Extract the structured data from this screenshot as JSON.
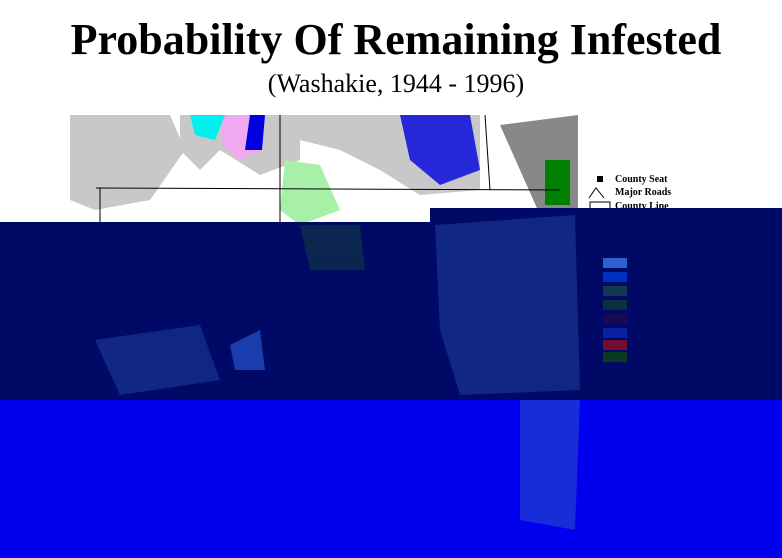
{
  "title": "Probability Of Remaining Infested",
  "subtitle": "(Washakie, 1944 - 1996)",
  "legend": {
    "items": [
      "County Seat",
      "Major Roads",
      "County Line"
    ]
  }
}
